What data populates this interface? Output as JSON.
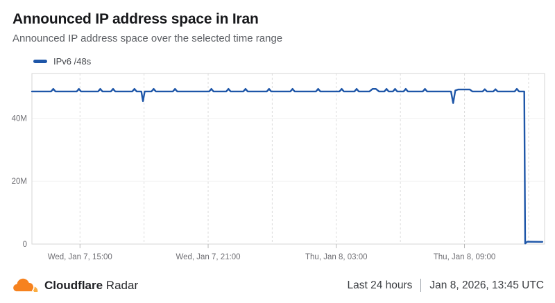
{
  "chart_data": {
    "type": "line",
    "title": "Announced IP address space in Iran",
    "subtitle": "Announced IP address space over the selected time range",
    "ylabel": "",
    "xlabel": "",
    "y_ticks": [
      {
        "label": "0",
        "value": 0
      },
      {
        "label": "20M",
        "value": 20
      },
      {
        "label": "40M",
        "value": 40
      }
    ],
    "ylim": [
      0,
      54.2
    ],
    "xlim_hours": [
      0,
      24
    ],
    "x_axis_note": "24-hour window ending Jan 8, 2026 (UTC), values in millions of /48s",
    "x_gridlines_hours": [
      2.25,
      5.25,
      8.25,
      11.25,
      14.25,
      17.25,
      20.25,
      23.25
    ],
    "x_ticks": [
      {
        "label": "Wed, Jan 7, 15:00",
        "hour": 2.25
      },
      {
        "label": "Wed, Jan 7, 21:00",
        "hour": 8.25
      },
      {
        "label": "Thu, Jan 8, 03:00",
        "hour": 14.25
      },
      {
        "label": "Thu, Jan 8, 09:00",
        "hour": 20.25
      }
    ],
    "series": [
      {
        "name": "IPv6 /48s",
        "color": "#1e56a8",
        "unit": "millions of /48s",
        "points": [
          [
            0,
            48.5
          ],
          [
            0.9,
            48.5
          ],
          [
            1.0,
            49.3
          ],
          [
            1.1,
            48.5
          ],
          [
            2.1,
            48.5
          ],
          [
            2.2,
            49.3
          ],
          [
            2.3,
            48.5
          ],
          [
            3.1,
            48.5
          ],
          [
            3.2,
            49.3
          ],
          [
            3.3,
            48.5
          ],
          [
            3.7,
            48.5
          ],
          [
            3.8,
            49.3
          ],
          [
            3.9,
            48.5
          ],
          [
            4.7,
            48.5
          ],
          [
            4.8,
            49.3
          ],
          [
            4.9,
            48.5
          ],
          [
            5.12,
            48.5
          ],
          [
            5.2,
            45.4
          ],
          [
            5.28,
            48.5
          ],
          [
            5.6,
            48.5
          ],
          [
            5.7,
            49.3
          ],
          [
            5.8,
            48.5
          ],
          [
            6.6,
            48.5
          ],
          [
            6.7,
            49.3
          ],
          [
            6.8,
            48.5
          ],
          [
            8.3,
            48.5
          ],
          [
            8.4,
            49.3
          ],
          [
            8.5,
            48.5
          ],
          [
            9.1,
            48.5
          ],
          [
            9.2,
            49.3
          ],
          [
            9.3,
            48.5
          ],
          [
            9.9,
            48.5
          ],
          [
            10.0,
            49.3
          ],
          [
            10.1,
            48.5
          ],
          [
            11.0,
            48.5
          ],
          [
            11.1,
            49.3
          ],
          [
            11.2,
            48.5
          ],
          [
            12.1,
            48.5
          ],
          [
            12.2,
            49.3
          ],
          [
            12.3,
            48.5
          ],
          [
            13.3,
            48.5
          ],
          [
            13.4,
            49.3
          ],
          [
            13.5,
            48.5
          ],
          [
            14.4,
            48.5
          ],
          [
            14.5,
            49.3
          ],
          [
            14.6,
            48.5
          ],
          [
            15.1,
            48.5
          ],
          [
            15.2,
            49.3
          ],
          [
            15.3,
            48.5
          ],
          [
            15.8,
            48.5
          ],
          [
            15.95,
            49.3
          ],
          [
            16.1,
            49.3
          ],
          [
            16.25,
            48.5
          ],
          [
            16.5,
            48.5
          ],
          [
            16.6,
            49.3
          ],
          [
            16.7,
            48.5
          ],
          [
            16.9,
            48.5
          ],
          [
            17.0,
            49.3
          ],
          [
            17.1,
            48.5
          ],
          [
            17.4,
            48.5
          ],
          [
            17.5,
            49.3
          ],
          [
            17.6,
            48.5
          ],
          [
            18.3,
            48.5
          ],
          [
            18.4,
            49.3
          ],
          [
            18.5,
            48.5
          ],
          [
            19.62,
            48.5
          ],
          [
            19.72,
            44.8
          ],
          [
            19.82,
            48.8
          ],
          [
            19.95,
            49.1
          ],
          [
            20.5,
            49.1
          ],
          [
            20.62,
            48.5
          ],
          [
            21.1,
            48.5
          ],
          [
            21.2,
            49.2
          ],
          [
            21.3,
            48.5
          ],
          [
            21.6,
            48.5
          ],
          [
            21.7,
            49.2
          ],
          [
            21.8,
            48.5
          ],
          [
            22.6,
            48.5
          ],
          [
            22.7,
            49.3
          ],
          [
            22.8,
            48.5
          ],
          [
            23.05,
            48.5
          ],
          [
            23.09,
            0.15
          ],
          [
            23.18,
            0.75
          ],
          [
            23.9,
            0.7
          ]
        ]
      }
    ],
    "legend_position": "top-left",
    "grid": {
      "vertical": "dashed",
      "horizontal": "faint"
    }
  },
  "footer": {
    "brand_bold": "Cloudflare",
    "brand_regular": "Radar",
    "time_range": "Last 24 hours",
    "timestamp": "Jan 8, 2026, 13:45 UTC"
  },
  "colors": {
    "line_blue": "#1e56a8",
    "logo_orange": "#f6821f",
    "logo_light_orange": "#fbad41",
    "axis_text": "#6e6e73",
    "gridline": "#dcdcdc",
    "plot_border": "#d6d6d6"
  }
}
